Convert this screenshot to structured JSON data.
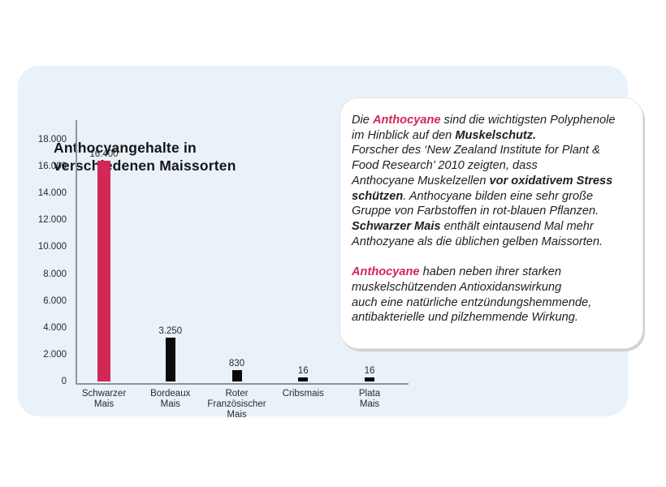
{
  "header": {
    "title": "Anthocyangehalte in\nverschiedenen Maissorten"
  },
  "chart_data": {
    "type": "bar",
    "title": "Anthocyangehalte in verschiedenen Maissorten",
    "categories": [
      "Schwarzer Mais",
      "Bordeaux Mais",
      "Roter Französischer Mais",
      "Cribsmais",
      "Plata Mais"
    ],
    "category_label_lines": [
      "Schwarzer\nMais",
      "Bordeaux\nMais",
      "Roter\nFranzösischer\nMais",
      "Cribsmais",
      "Plata\nMais"
    ],
    "values": [
      16400,
      3250,
      830,
      16,
      16
    ],
    "value_labels": [
      "16.400",
      "3.250",
      "830",
      "16",
      "16"
    ],
    "bar_colors": [
      "#d32757",
      "#0a0a0a",
      "#0a0a0a",
      "#0a0a0a",
      "#0a0a0a"
    ],
    "ylim": [
      0,
      18000
    ],
    "ytick_labels": [
      "0",
      "2.000",
      "4.000",
      "6.000",
      "8.000",
      "10.000",
      "12.000",
      "14.000",
      "16.000",
      "18.000"
    ],
    "xlabel": "",
    "ylabel": "",
    "grid": false,
    "legend": "none"
  },
  "infobox": {
    "accent_color": "#d32757",
    "paragraphs": [
      {
        "segments": [
          {
            "style": "normal",
            "text": "Die "
          },
          {
            "style": "accent",
            "text": "Anthocyane"
          },
          {
            "style": "normal",
            "text": " sind die wichtigsten Polyphenole\nim Hinblick auf den "
          },
          {
            "style": "bold",
            "text": "Muskelschutz."
          },
          {
            "style": "normal",
            "text": "\nForscher des ‘New Zealand Institute for Plant &\nFood Research’ 2010 zeigten, dass\nAnthocyane Muskelzellen "
          },
          {
            "style": "bold",
            "text": "vor oxidativem Stress\nschützen"
          },
          {
            "style": "normal",
            "text": ". Anthocyane bilden eine sehr große\nGruppe von Farbstoffen in rot-blauen Pflanzen.\n"
          },
          {
            "style": "bold",
            "text": "Schwarzer Mais"
          },
          {
            "style": "normal",
            "text": " enthält eintausend Mal mehr\nAnthozyane als die üblichen gelben Maissorten."
          }
        ]
      },
      {
        "segments": [
          {
            "style": "accent",
            "text": "Anthocyane"
          },
          {
            "style": "normal",
            "text": " haben neben ihrer starken\nmuskelschützenden Antioxidanswirkung\nauch eine natürliche entzündungshemmende,\nantibakterielle und pilzhemmende Wirkung."
          }
        ]
      }
    ]
  }
}
